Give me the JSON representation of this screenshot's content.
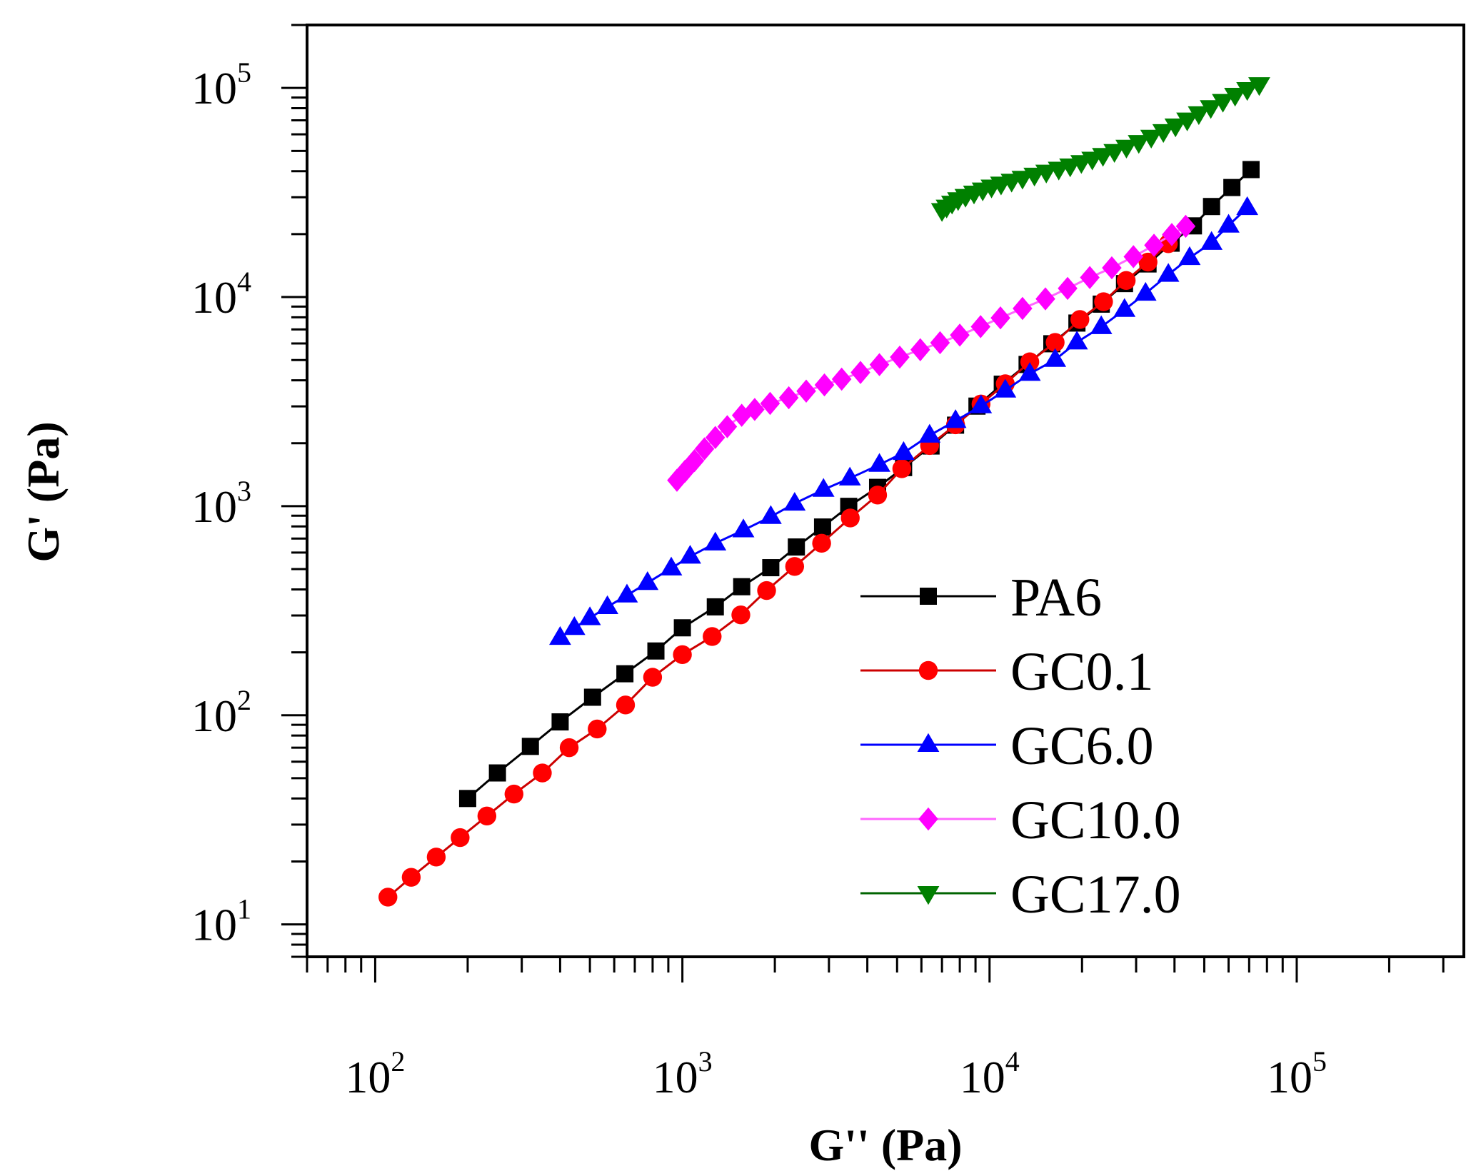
{
  "chart_data": {
    "type": "scatter",
    "title": "",
    "xlabel": "G'' (Pa)",
    "ylabel": "G' (Pa)",
    "xscale": "log",
    "yscale": "log",
    "xlim": [
      60,
      350000
    ],
    "ylim": [
      7,
      200000
    ],
    "x_ticks": [
      {
        "value": 100,
        "base": "10",
        "exp": "2"
      },
      {
        "value": 1000,
        "base": "10",
        "exp": "3"
      },
      {
        "value": 10000,
        "base": "10",
        "exp": "4"
      },
      {
        "value": 100000,
        "base": "10",
        "exp": "5"
      }
    ],
    "y_ticks": [
      {
        "value": 10,
        "base": "10",
        "exp": "1"
      },
      {
        "value": 100,
        "base": "10",
        "exp": "2"
      },
      {
        "value": 1000,
        "base": "10",
        "exp": "3"
      },
      {
        "value": 10000,
        "base": "10",
        "exp": "4"
      },
      {
        "value": 100000,
        "base": "10",
        "exp": "5"
      }
    ],
    "legend_position": "bottom-right",
    "series": [
      {
        "name": "PA6",
        "color": "#000000",
        "marker": "square",
        "points": [
          [
            200,
            40
          ],
          [
            250,
            53
          ],
          [
            320,
            71
          ],
          [
            400,
            93
          ],
          [
            510,
            122
          ],
          [
            650,
            158
          ],
          [
            820,
            203
          ],
          [
            1000,
            262
          ],
          [
            1280,
            330
          ],
          [
            1560,
            412
          ],
          [
            1940,
            508
          ],
          [
            2350,
            638
          ],
          [
            2860,
            795
          ],
          [
            3480,
            998
          ],
          [
            4320,
            1230
          ],
          [
            5250,
            1530
          ],
          [
            6450,
            1940
          ],
          [
            7750,
            2440
          ],
          [
            9100,
            3010
          ],
          [
            11000,
            3830
          ],
          [
            13250,
            4760
          ],
          [
            15950,
            5980
          ],
          [
            19250,
            7510
          ],
          [
            23100,
            9250
          ],
          [
            27500,
            11600
          ],
          [
            32800,
            14400
          ],
          [
            39000,
            18100
          ],
          [
            46100,
            21900
          ],
          [
            52800,
            27100
          ],
          [
            61500,
            33400
          ],
          [
            71000,
            40700
          ]
        ]
      },
      {
        "name": "GC0.1",
        "color": "#ff0000",
        "line_color": "#cc0000",
        "marker": "circle",
        "points": [
          [
            110,
            13.5
          ],
          [
            131,
            16.8
          ],
          [
            158,
            21
          ],
          [
            189,
            26
          ],
          [
            231,
            33
          ],
          [
            283,
            42
          ],
          [
            350,
            53
          ],
          [
            428,
            70
          ],
          [
            528,
            86
          ],
          [
            653,
            112
          ],
          [
            800,
            152
          ],
          [
            1000,
            195
          ],
          [
            1250,
            238
          ],
          [
            1550,
            302
          ],
          [
            1880,
            395
          ],
          [
            2320,
            515
          ],
          [
            2840,
            665
          ],
          [
            3520,
            878
          ],
          [
            4320,
            1130
          ],
          [
            5180,
            1510
          ],
          [
            6380,
            1950
          ],
          [
            7750,
            2450
          ],
          [
            9380,
            3080
          ],
          [
            11250,
            3850
          ],
          [
            13520,
            4900
          ],
          [
            16350,
            6070
          ],
          [
            19680,
            7810
          ],
          [
            23500,
            9500
          ],
          [
            27850,
            12000
          ],
          [
            32800,
            14700
          ],
          [
            38200,
            18000
          ]
        ]
      },
      {
        "name": "GC6.0",
        "color": "#0000ff",
        "marker": "triangle-up",
        "points": [
          [
            400,
            235
          ],
          [
            445,
            262
          ],
          [
            500,
            292
          ],
          [
            570,
            330
          ],
          [
            660,
            375
          ],
          [
            770,
            430
          ],
          [
            920,
            505
          ],
          [
            1060,
            575
          ],
          [
            1280,
            665
          ],
          [
            1580,
            768
          ],
          [
            1940,
            890
          ],
          [
            2320,
            1030
          ],
          [
            2880,
            1200
          ],
          [
            3510,
            1360
          ],
          [
            4380,
            1580
          ],
          [
            5250,
            1800
          ],
          [
            6380,
            2180
          ],
          [
            7750,
            2560
          ],
          [
            9380,
            3010
          ],
          [
            11250,
            3580
          ],
          [
            13520,
            4300
          ],
          [
            16350,
            5020
          ],
          [
            19250,
            6080
          ],
          [
            23100,
            7200
          ],
          [
            27500,
            8700
          ],
          [
            32200,
            10400
          ],
          [
            38200,
            12800
          ],
          [
            44800,
            15400
          ],
          [
            52800,
            18200
          ],
          [
            60000,
            22000
          ],
          [
            69000,
            26700
          ]
        ]
      },
      {
        "name": "GC10.0",
        "color": "#ff00ff",
        "line_color": "#ff66ff",
        "marker": "diamond",
        "points": [
          [
            960,
            1330
          ],
          [
            1020,
            1470
          ],
          [
            1095,
            1650
          ],
          [
            1180,
            1880
          ],
          [
            1280,
            2130
          ],
          [
            1400,
            2400
          ],
          [
            1560,
            2720
          ],
          [
            1720,
            2900
          ],
          [
            1930,
            3100
          ],
          [
            2220,
            3300
          ],
          [
            2530,
            3550
          ],
          [
            2900,
            3800
          ],
          [
            3300,
            4050
          ],
          [
            3800,
            4360
          ],
          [
            4380,
            4750
          ],
          [
            5100,
            5160
          ],
          [
            5950,
            5600
          ],
          [
            6900,
            6050
          ],
          [
            8000,
            6580
          ],
          [
            9350,
            7220
          ],
          [
            10850,
            7950
          ],
          [
            12800,
            8820
          ],
          [
            15200,
            9800
          ],
          [
            17950,
            11000
          ],
          [
            21200,
            12400
          ],
          [
            25000,
            13800
          ],
          [
            29400,
            15600
          ],
          [
            34300,
            17700
          ],
          [
            39200,
            19900
          ],
          [
            43500,
            21800
          ]
        ]
      },
      {
        "name": "GC17.0",
        "color": "#008000",
        "line_color": "#006400",
        "marker": "triangle-down",
        "points": [
          [
            7000,
            26000
          ],
          [
            7250,
            27000
          ],
          [
            7550,
            28200
          ],
          [
            7900,
            29300
          ],
          [
            8350,
            30400
          ],
          [
            8900,
            31500
          ],
          [
            9500,
            32600
          ],
          [
            10150,
            33700
          ],
          [
            10900,
            34800
          ],
          [
            11800,
            35900
          ],
          [
            12800,
            37100
          ],
          [
            14000,
            38400
          ],
          [
            15300,
            39700
          ],
          [
            16800,
            41000
          ],
          [
            18300,
            42500
          ],
          [
            19900,
            44100
          ],
          [
            21600,
            45800
          ],
          [
            23400,
            47700
          ],
          [
            25500,
            49800
          ],
          [
            27900,
            52200
          ],
          [
            30600,
            55000
          ],
          [
            33600,
            58300
          ],
          [
            36800,
            62000
          ],
          [
            40300,
            66000
          ],
          [
            44000,
            70500
          ],
          [
            48000,
            75500
          ],
          [
            52500,
            80800
          ],
          [
            57500,
            86500
          ],
          [
            63000,
            92500
          ],
          [
            69000,
            98500
          ],
          [
            75500,
            104000
          ]
        ]
      }
    ]
  }
}
